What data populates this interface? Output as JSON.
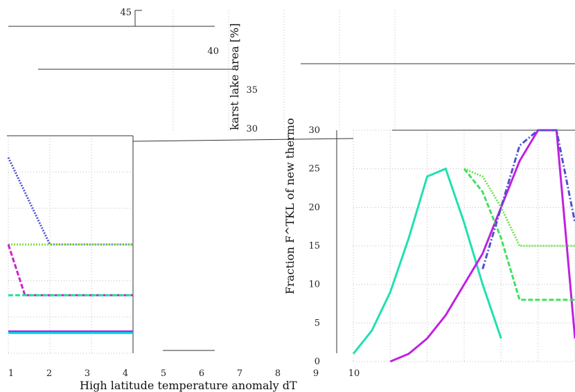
{
  "chart_data": [
    {
      "panel": "main-left",
      "type": "line",
      "xlabel": "High latitude temperature anomaly dT",
      "x_ticks": [
        "1",
        "2",
        "3",
        "4",
        "5",
        "6",
        "7",
        "8",
        "9",
        "10"
      ],
      "series": [
        {
          "color": "#5050d0",
          "style": "dotted",
          "x": [
            1,
            2,
            4
          ],
          "y": [
            27,
            15,
            15
          ]
        },
        {
          "color": "#80e040",
          "style": "dotted",
          "x": [
            1,
            4
          ],
          "y": [
            15,
            15
          ]
        },
        {
          "color": "#d020d0",
          "style": "dashed",
          "x": [
            1,
            1.4,
            4
          ],
          "y": [
            15,
            8,
            8
          ]
        },
        {
          "color": "#20e0a0",
          "style": "dashed",
          "x": [
            1,
            4
          ],
          "y": [
            8,
            8
          ]
        },
        {
          "color": "#a020f0",
          "style": "solid",
          "x": [
            1,
            4
          ],
          "y": [
            3,
            3
          ]
        },
        {
          "color": "#00d8e0",
          "style": "solid",
          "x": [
            1,
            4
          ],
          "y": [
            2.8,
            2.8
          ]
        }
      ]
    },
    {
      "panel": "main-right",
      "type": "line",
      "ylabel": "Fraction F^TKL of new thermo",
      "y_ticks": [
        "0",
        "5",
        "10",
        "15",
        "20",
        "25",
        "30"
      ],
      "ylim": [
        0,
        30
      ],
      "series": [
        {
          "color": "#20e0b0",
          "style": "solid",
          "x": [
            0,
            1,
            2,
            3,
            4,
            5,
            6,
            7,
            8
          ],
          "y": [
            1,
            4,
            9,
            16,
            24,
            25,
            18,
            10,
            3
          ]
        },
        {
          "color": "#c020e0",
          "style": "solid",
          "x": [
            2,
            3,
            4,
            5,
            6,
            7,
            8,
            9,
            10,
            11,
            12
          ],
          "y": [
            0,
            1,
            3,
            6,
            10,
            14,
            20,
            26,
            30,
            30,
            3
          ]
        },
        {
          "color": "#70e050",
          "style": "dotted",
          "x": [
            6,
            7,
            8,
            9,
            10,
            11,
            12
          ],
          "y": [
            25,
            24,
            20,
            15,
            15,
            15,
            15
          ]
        },
        {
          "color": "#40e060",
          "style": "dashed",
          "x": [
            6,
            7,
            8,
            9,
            10,
            12
          ],
          "y": [
            25,
            22,
            16,
            8,
            8,
            8
          ]
        },
        {
          "color": "#5050d0",
          "style": "dashdot",
          "x": [
            7,
            8,
            9,
            10,
            11,
            12
          ],
          "y": [
            12,
            20,
            28,
            30,
            30,
            18
          ]
        }
      ]
    },
    {
      "panel": "inset-karst",
      "type": "line",
      "ylabel": "karst lake area [%]",
      "y_ticks": [
        "30",
        "35",
        "40",
        "45"
      ]
    }
  ]
}
